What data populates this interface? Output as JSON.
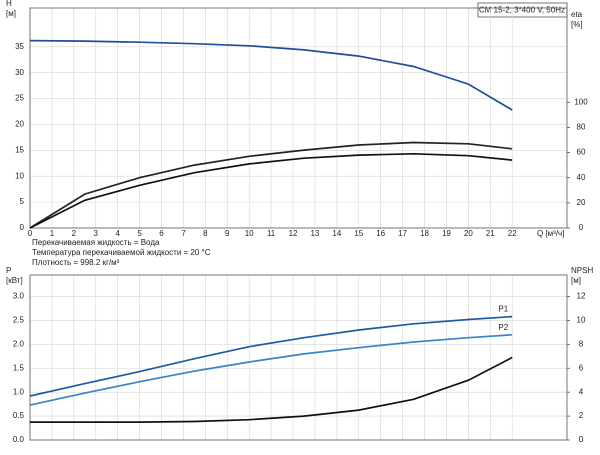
{
  "chart_data": [
    {
      "type": "line",
      "title": "CM 15-2, 3*400 V, 50Hz",
      "ylabel": [
        "H",
        "[м]"
      ],
      "y2label": [
        "eta",
        "[%]"
      ],
      "xlabel": "Q [м³/ч]",
      "notes": [
        "Перекачиваемая жидкость = Вода",
        "Температура перекачиваемой жидкости = 20 °C",
        "Плотность = 998.2 кг/м³"
      ],
      "x": [
        0,
        2.5,
        5,
        7.5,
        10,
        12.5,
        15,
        17.5,
        20,
        22
      ],
      "xlim": [
        0,
        24.5
      ],
      "xticks": [
        0,
        1,
        2,
        3,
        4,
        5,
        6,
        7,
        8,
        9,
        10,
        11,
        12,
        13,
        14,
        15,
        16,
        17,
        18,
        19,
        20,
        21,
        22
      ],
      "ylim": [
        0,
        42.5
      ],
      "yticks": [
        0,
        5,
        10,
        15,
        20,
        25,
        30,
        35
      ],
      "y2lim": [
        0,
        175
      ],
      "y2ticks": [
        0,
        20,
        40,
        60,
        80,
        100
      ],
      "grid": true,
      "series": [
        {
          "color": "#1f4e9a",
          "values": [
            36.2,
            36.1,
            35.9,
            35.6,
            35.2,
            34.4,
            33.2,
            31.2,
            27.8,
            22.8
          ]
        },
        {
          "color": "#222222",
          "axis": "y2",
          "values": [
            0,
            27,
            40,
            50,
            57,
            62,
            66,
            68,
            67,
            63
          ]
        },
        {
          "color": "#111111",
          "axis": "y2",
          "values": [
            0,
            22,
            34,
            44,
            51,
            55.5,
            58,
            59,
            57.5,
            54
          ]
        }
      ]
    },
    {
      "type": "line",
      "ylabel": [
        "P",
        "[кВт]"
      ],
      "y2label": [
        "NPSH",
        "[м]"
      ],
      "x": [
        0,
        2.5,
        5,
        7.5,
        10,
        12.5,
        15,
        17.5,
        20,
        22
      ],
      "xlim": [
        0,
        24.5
      ],
      "ylim": [
        0,
        3.45
      ],
      "yticks": [
        {
          "value": 0,
          "label": "0.0"
        },
        0.5,
        {
          "value": 1,
          "label": "1.0"
        },
        1.5,
        {
          "value": 2,
          "label": "2.0"
        },
        2.5,
        {
          "value": 3,
          "label": "3.0"
        }
      ],
      "y2lim": [
        0,
        13.8
      ],
      "y2ticks": [
        0,
        2,
        4,
        6,
        8,
        10,
        12
      ],
      "grid": true,
      "series": [
        {
          "name": "P1",
          "color": "#1f5aa6",
          "values": [
            0.92,
            1.18,
            1.43,
            1.7,
            1.95,
            2.14,
            2.3,
            2.43,
            2.52,
            2.58
          ]
        },
        {
          "name": "P2",
          "color": "#3a85c6",
          "values": [
            0.73,
            0.98,
            1.22,
            1.44,
            1.63,
            1.8,
            1.93,
            2.05,
            2.14,
            2.2
          ]
        },
        {
          "color": "#111111",
          "axis": "y2",
          "values": [
            1.5,
            1.5,
            1.5,
            1.55,
            1.7,
            2.0,
            2.5,
            3.4,
            5.0,
            6.9
          ]
        }
      ]
    }
  ]
}
